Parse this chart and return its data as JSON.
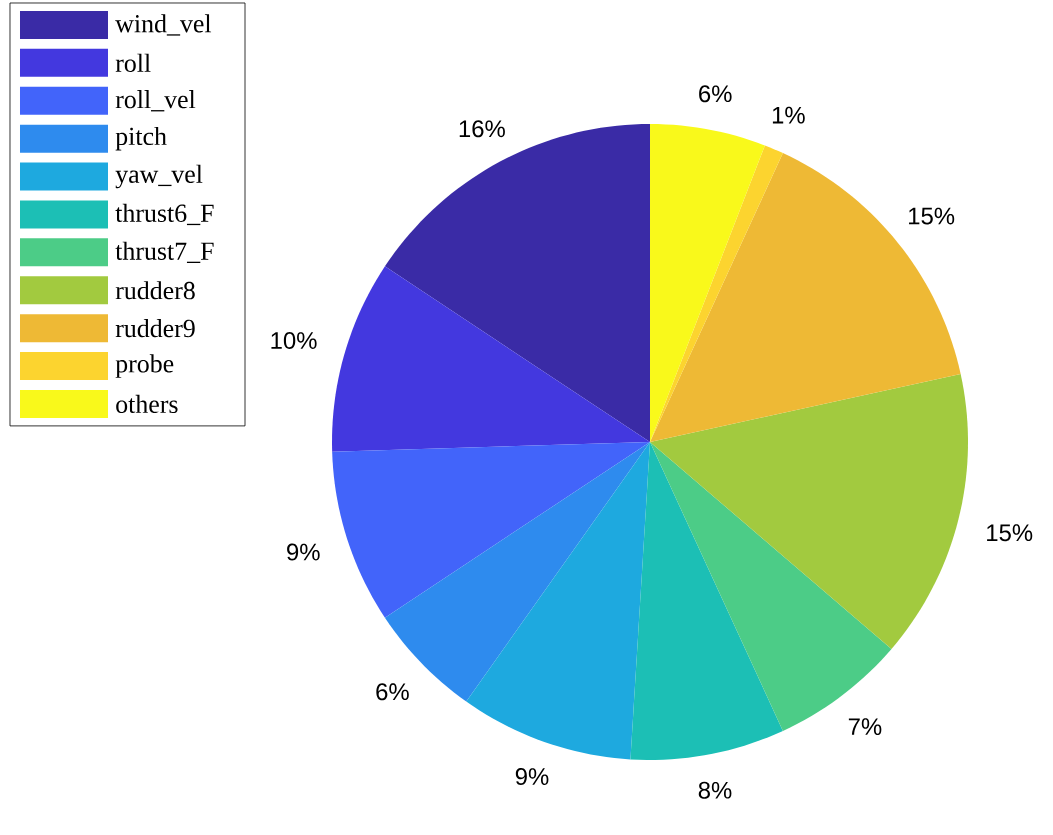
{
  "chart_data": {
    "type": "pie",
    "categories": [
      "wind_vel",
      "roll",
      "roll_vel",
      "pitch",
      "yaw_vel",
      "thrust6_F",
      "thrust7_F",
      "rudder8",
      "rudder9",
      "probe",
      "others"
    ],
    "values": [
      16,
      10,
      9,
      6,
      9,
      8,
      7,
      15,
      15,
      1,
      6
    ],
    "value_labels": [
      "16%",
      "10%",
      "9%",
      "6%",
      "9%",
      "8%",
      "7%",
      "15%",
      "15%",
      "1%",
      "6%"
    ],
    "colors": [
      "#3a2ba6",
      "#4338df",
      "#4264fa",
      "#2e8bee",
      "#1ea9df",
      "#1cbfb5",
      "#4ccc87",
      "#a2ca3f",
      "#eeb935",
      "#fcd42f",
      "#f9f91b"
    ],
    "legend": "top left"
  }
}
